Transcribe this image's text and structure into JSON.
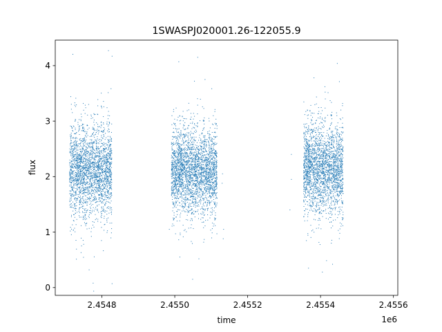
{
  "chart_data": {
    "type": "scatter",
    "title": "1SWASPJ020001.26-122055.9",
    "xlabel": "time",
    "ylabel": "flux",
    "x_offset_label": "1e6",
    "xlim": [
      2454672,
      2455612
    ],
    "ylim": [
      -0.14,
      4.46
    ],
    "x_ticks": [
      2454800,
      2455000,
      2455200,
      2455400,
      2455600
    ],
    "x_tick_labels": [
      "2.4548",
      "2.4550",
      "2.4552",
      "2.4554",
      "2.4556"
    ],
    "y_ticks": [
      0,
      1,
      2,
      3,
      4
    ],
    "y_tick_labels": [
      "0",
      "1",
      "2",
      "3",
      "4"
    ],
    "grid": false,
    "marker_color": "#1f77b4",
    "seasons": [
      {
        "x_start": 2454712,
        "x_end": 2454828,
        "center": 2.1,
        "spread": 0.38
      },
      {
        "x_start": 2454991,
        "x_end": 2455117,
        "center": 2.1,
        "spread": 0.38
      },
      {
        "x_start": 2455354,
        "x_end": 2455463,
        "center": 2.15,
        "spread": 0.4
      }
    ],
    "points": [
      {
        "x": 2454818,
        "y": 4.27
      },
      {
        "x": 2454828,
        "y": 4.17
      },
      {
        "x": 2455011,
        "y": 4.07
      },
      {
        "x": 2455063,
        "y": 4.15
      },
      {
        "x": 2455083,
        "y": 3.75
      },
      {
        "x": 2455054,
        "y": 3.72
      },
      {
        "x": 2455446,
        "y": 4.04
      },
      {
        "x": 2455382,
        "y": 3.78
      },
      {
        "x": 2455412,
        "y": 3.62
      },
      {
        "x": 2454776,
        "y": 0.08
      },
      {
        "x": 2454828,
        "y": 0.07
      },
      {
        "x": 2455049,
        "y": 0.15
      },
      {
        "x": 2455405,
        "y": 0.28
      },
      {
        "x": 2455367,
        "y": 0.35
      },
      {
        "x": 2454765,
        "y": 0.32
      },
      {
        "x": 2455014,
        "y": 0.55
      },
      {
        "x": 2455433,
        "y": 0.42
      },
      {
        "x": 2455134,
        "y": 1.05
      },
      {
        "x": 2455133,
        "y": 0.88
      },
      {
        "x": 2455131,
        "y": 2.05
      },
      {
        "x": 2455130,
        "y": 1.88
      },
      {
        "x": 2455320,
        "y": 2.4
      },
      {
        "x": 2455316,
        "y": 1.4
      },
      {
        "x": 2455320,
        "y": 1.95
      },
      {
        "x": 2454750,
        "y": 0.78
      },
      {
        "x": 2454985,
        "y": 1.05
      }
    ]
  }
}
